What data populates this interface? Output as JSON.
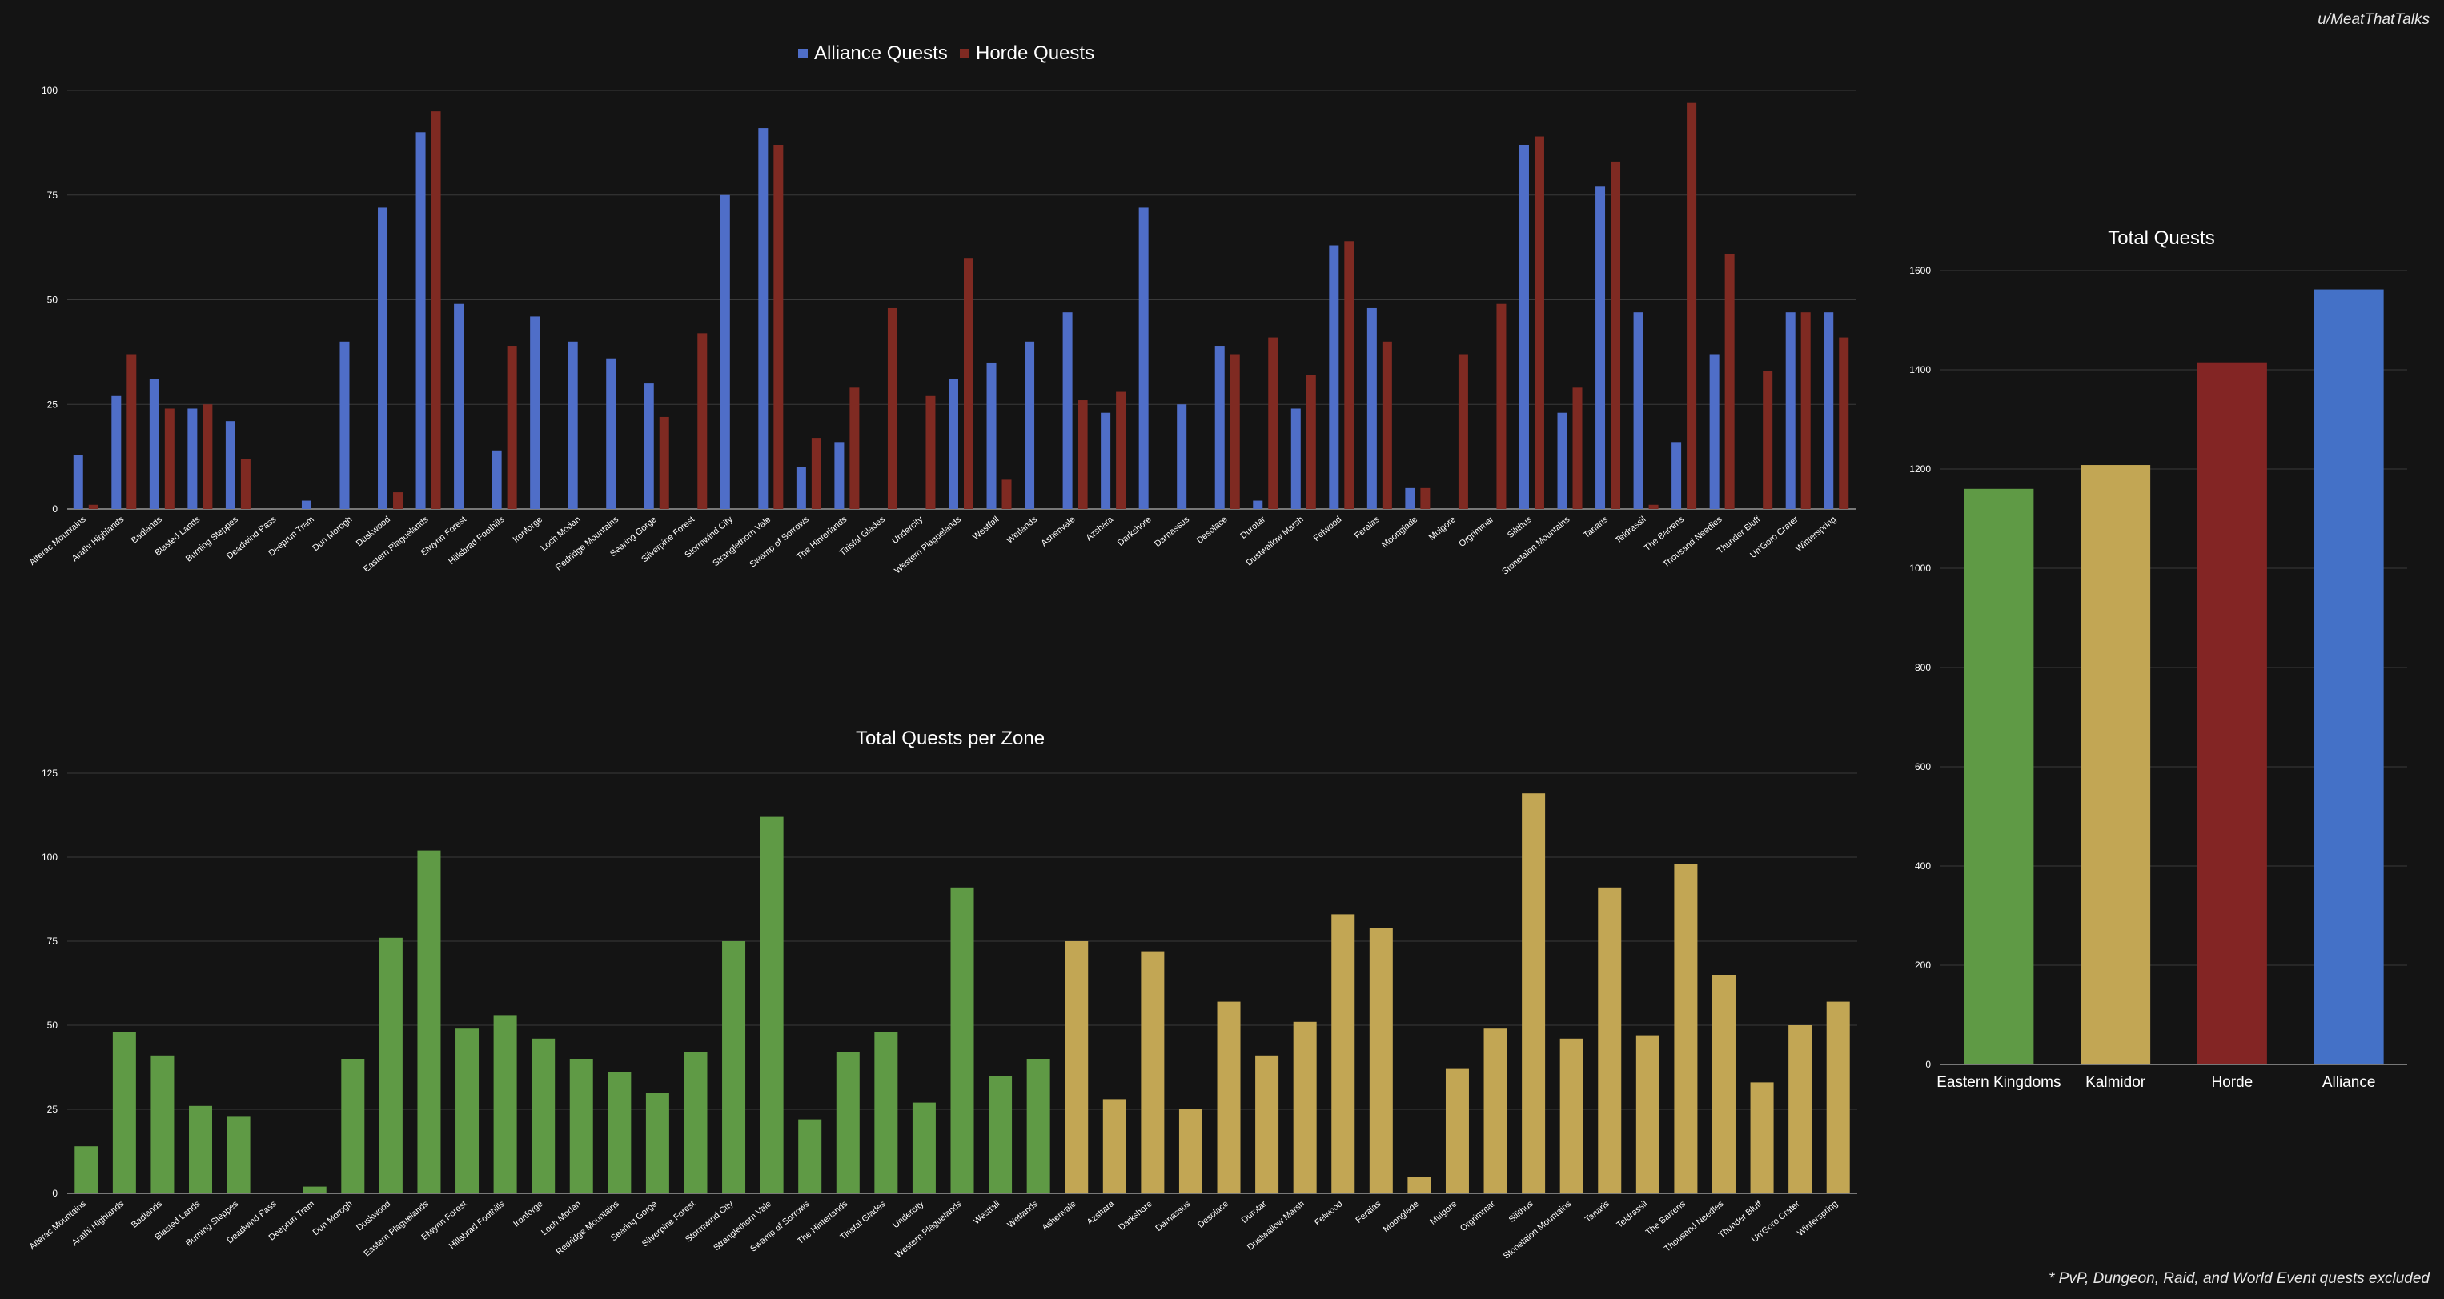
{
  "attribution": "u/MeatThatTalks",
  "footnote": "* PvP, Dungeon, Raid, and World Event quests excluded",
  "colors": {
    "background": "#141414",
    "grid": "#3a3a3a",
    "axis": "#9a9a9a",
    "tick_text": "#ffffff",
    "alliance": "#4f6ec8",
    "horde": "#7f2a22",
    "eastern_kingdoms": "#5f9a45",
    "kalimdor": "#c2a654",
    "horde_total": "#832524",
    "alliance_total": "#4471c7"
  },
  "zones": [
    "Alterac Mountains",
    "Arathi Highlands",
    "Badlands",
    "Blasted Lands",
    "Burning Steppes",
    "Deadwind Pass",
    "Deeprun Tram",
    "Dun Morogh",
    "Duskwood",
    "Eastern Plaguelands",
    "Elwynn Forest",
    "Hillsbrad Foothills",
    "Ironforge",
    "Loch Modan",
    "Redridge Mountains",
    "Searing Gorge",
    "Silverpine Forest",
    "Stormwind City",
    "Stranglethorn Vale",
    "Swamp of Sorrows",
    "The Hinterlands",
    "Tirisfal Glades",
    "Undercity",
    "Western Plaguelands",
    "Westfall",
    "Wetlands",
    "Ashenvale",
    "Azshara",
    "Darkshore",
    "Darnassus",
    "Desolace",
    "Durotar",
    "Dustwallow Marsh",
    "Felwood",
    "Feralas",
    "Moonglade",
    "Mulgore",
    "Orgrimmar",
    "Silithus",
    "Stonetalon Mountains",
    "Tanaris",
    "Teldrassil",
    "The Barrens",
    "Thousand Needles",
    "Thunder Bluff",
    "Un'Goro Crater",
    "Winterspring"
  ],
  "chart_data": [
    {
      "id": "faction",
      "type": "bar",
      "title": "",
      "xlabel": "",
      "ylabel": "",
      "ylim": [
        0,
        100
      ],
      "yticks": [
        0,
        25,
        50,
        75,
        100
      ],
      "grid": true,
      "legend": "top-center",
      "series": [
        {
          "name": "Alliance Quests",
          "color": "#4f6ec8",
          "values": [
            13,
            27,
            31,
            24,
            21,
            0,
            2,
            40,
            72,
            90,
            49,
            14,
            46,
            40,
            36,
            30,
            0,
            75,
            91,
            10,
            16,
            0,
            0,
            31,
            35,
            40,
            47,
            23,
            72,
            25,
            39,
            2,
            24,
            63,
            48,
            5,
            0,
            0,
            87,
            23,
            77,
            47,
            16,
            37,
            0,
            47,
            47
          ]
        },
        {
          "name": "Horde Quests",
          "color": "#7f2a22",
          "values": [
            1,
            37,
            24,
            25,
            12,
            0,
            0,
            0,
            4,
            95,
            0,
            39,
            0,
            0,
            0,
            22,
            42,
            0,
            87,
            17,
            29,
            48,
            27,
            60,
            7,
            0,
            26,
            28,
            0,
            0,
            37,
            41,
            32,
            64,
            40,
            5,
            37,
            49,
            89,
            29,
            83,
            1,
            97,
            61,
            33,
            47,
            41
          ]
        }
      ]
    },
    {
      "id": "zones",
      "type": "bar",
      "title": "Total Quests per Zone",
      "xlabel": "",
      "ylabel": "",
      "ylim": [
        0,
        125
      ],
      "yticks": [
        0,
        25,
        50,
        75,
        100,
        125
      ],
      "grid": true,
      "continent_split_index": 26,
      "values": [
        14,
        48,
        41,
        26,
        23,
        0,
        2,
        40,
        76,
        102,
        49,
        53,
        46,
        40,
        36,
        30,
        42,
        75,
        112,
        22,
        42,
        48,
        27,
        91,
        35,
        40,
        75,
        28,
        72,
        25,
        57,
        41,
        51,
        83,
        79,
        5,
        37,
        49,
        119,
        46,
        91,
        47,
        98,
        65,
        33,
        50,
        57
      ]
    },
    {
      "id": "totals",
      "type": "bar",
      "title": "Total Quests",
      "xlabel": "",
      "ylabel": "",
      "ylim": [
        0,
        1600
      ],
      "yticks": [
        0,
        200,
        400,
        600,
        800,
        1000,
        1200,
        1400,
        1600
      ],
      "grid": true,
      "categories": [
        "Eastern Kingdoms",
        "Kalmidor",
        "Horde",
        "Alliance"
      ],
      "values": [
        1160,
        1208,
        1415,
        1562
      ],
      "colors": [
        "#5f9a45",
        "#c2a654",
        "#832524",
        "#4471c7"
      ]
    }
  ]
}
